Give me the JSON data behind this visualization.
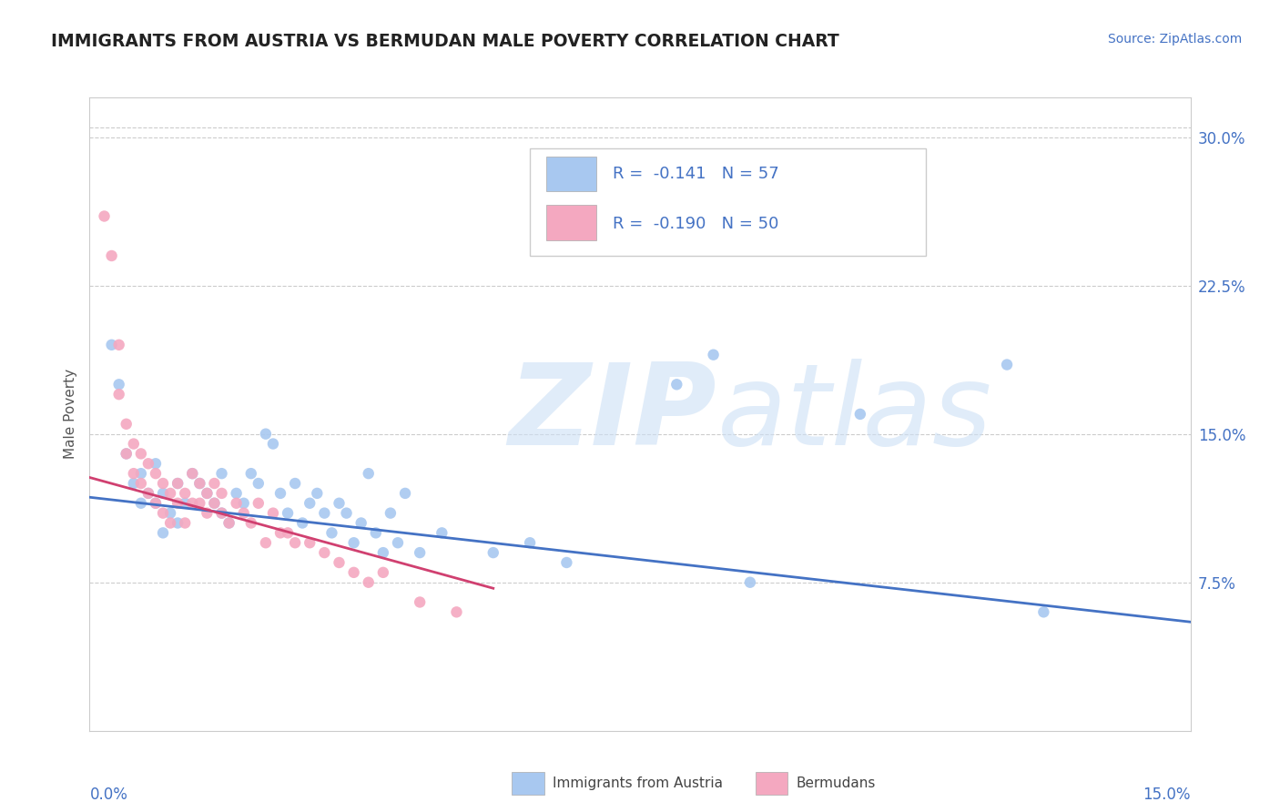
{
  "title": "IMMIGRANTS FROM AUSTRIA VS BERMUDAN MALE POVERTY CORRELATION CHART",
  "source": "Source: ZipAtlas.com",
  "ylabel": "Male Poverty",
  "y_tick_labels": [
    "7.5%",
    "15.0%",
    "22.5%",
    "30.0%"
  ],
  "y_tick_values": [
    0.075,
    0.15,
    0.225,
    0.3
  ],
  "xlim": [
    0.0,
    0.15
  ],
  "ylim": [
    0.0,
    0.32
  ],
  "legend_text1": "R =  -0.141   N = 57",
  "legend_text2": "R =  -0.190   N = 50",
  "blue_color": "#a8c8f0",
  "pink_color": "#f4a8c0",
  "blue_line_color": "#4472c4",
  "pink_line_color": "#d04070",
  "blue_trendline": [
    0.0,
    0.15,
    0.118,
    0.055
  ],
  "pink_trendline": [
    0.0,
    0.055,
    0.128,
    0.072
  ],
  "austria_x": [
    0.003,
    0.004,
    0.005,
    0.006,
    0.007,
    0.007,
    0.008,
    0.009,
    0.009,
    0.01,
    0.01,
    0.011,
    0.012,
    0.012,
    0.013,
    0.014,
    0.015,
    0.016,
    0.017,
    0.018,
    0.018,
    0.019,
    0.02,
    0.021,
    0.022,
    0.023,
    0.024,
    0.025,
    0.026,
    0.027,
    0.028,
    0.029,
    0.03,
    0.031,
    0.032,
    0.033,
    0.034,
    0.035,
    0.036,
    0.037,
    0.038,
    0.039,
    0.04,
    0.041,
    0.042,
    0.043,
    0.045,
    0.048,
    0.055,
    0.06,
    0.065,
    0.08,
    0.085,
    0.09,
    0.105,
    0.125,
    0.13
  ],
  "austria_y": [
    0.195,
    0.175,
    0.14,
    0.125,
    0.13,
    0.115,
    0.12,
    0.135,
    0.115,
    0.12,
    0.1,
    0.11,
    0.125,
    0.105,
    0.115,
    0.13,
    0.125,
    0.12,
    0.115,
    0.13,
    0.11,
    0.105,
    0.12,
    0.115,
    0.13,
    0.125,
    0.15,
    0.145,
    0.12,
    0.11,
    0.125,
    0.105,
    0.115,
    0.12,
    0.11,
    0.1,
    0.115,
    0.11,
    0.095,
    0.105,
    0.13,
    0.1,
    0.09,
    0.11,
    0.095,
    0.12,
    0.09,
    0.1,
    0.09,
    0.095,
    0.085,
    0.175,
    0.19,
    0.075,
    0.16,
    0.185,
    0.06
  ],
  "bermuda_x": [
    0.002,
    0.003,
    0.004,
    0.004,
    0.005,
    0.005,
    0.006,
    0.006,
    0.007,
    0.007,
    0.008,
    0.008,
    0.009,
    0.009,
    0.01,
    0.01,
    0.011,
    0.011,
    0.012,
    0.012,
    0.013,
    0.013,
    0.014,
    0.014,
    0.015,
    0.015,
    0.016,
    0.016,
    0.017,
    0.017,
    0.018,
    0.018,
    0.019,
    0.02,
    0.021,
    0.022,
    0.023,
    0.024,
    0.025,
    0.026,
    0.027,
    0.028,
    0.03,
    0.032,
    0.034,
    0.036,
    0.038,
    0.04,
    0.045,
    0.05
  ],
  "bermuda_y": [
    0.26,
    0.24,
    0.195,
    0.17,
    0.155,
    0.14,
    0.145,
    0.13,
    0.14,
    0.125,
    0.135,
    0.12,
    0.13,
    0.115,
    0.125,
    0.11,
    0.12,
    0.105,
    0.125,
    0.115,
    0.12,
    0.105,
    0.13,
    0.115,
    0.125,
    0.115,
    0.12,
    0.11,
    0.125,
    0.115,
    0.12,
    0.11,
    0.105,
    0.115,
    0.11,
    0.105,
    0.115,
    0.095,
    0.11,
    0.1,
    0.1,
    0.095,
    0.095,
    0.09,
    0.085,
    0.08,
    0.075,
    0.08,
    0.065,
    0.06
  ]
}
